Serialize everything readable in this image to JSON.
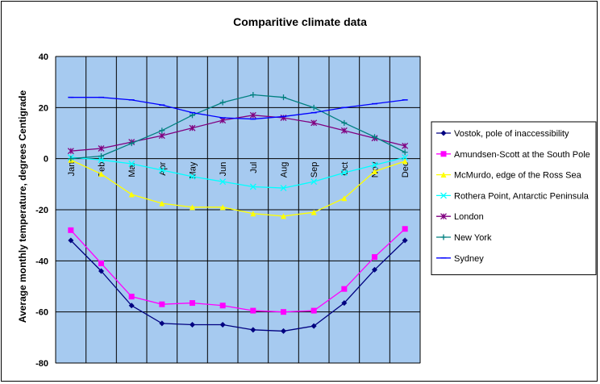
{
  "chart_data": {
    "type": "line",
    "title": "Comparitive climate data",
    "xlabel": "",
    "ylabel": "Average monthly temperature, degrees Centigrade",
    "categories": [
      "Jan",
      "Feb",
      "Mar",
      "Apr",
      "May",
      "Jun",
      "Jul",
      "Aug",
      "Sep",
      "Oct",
      "Nov",
      "Dec"
    ],
    "ylim": [
      -80,
      40
    ],
    "yticks": [
      -80,
      -60,
      -40,
      -20,
      0,
      20,
      40
    ],
    "grid": true,
    "plot_background": "#a6caf0",
    "legend_position": "right",
    "series": [
      {
        "name": "Vostok, pole of inaccessibility",
        "color": "#000080",
        "marker": "diamond",
        "values": [
          -32,
          -44,
          -57.5,
          -64.5,
          -65,
          -65,
          -67,
          -67.5,
          -65.5,
          -56.5,
          -43.5,
          -32
        ]
      },
      {
        "name": "Amundsen-Scott at the South Pole",
        "color": "#ff00ff",
        "marker": "square",
        "values": [
          -28,
          -41,
          -54,
          -57,
          -56.5,
          -57.5,
          -59.5,
          -60,
          -59.5,
          -51,
          -38.5,
          -27.5
        ]
      },
      {
        "name": "McMurdo, edge of the Ross Sea",
        "color": "#ffff00",
        "marker": "triangle",
        "values": [
          -0.5,
          -6,
          -14,
          -17.5,
          -19,
          -19,
          -21.5,
          -22.5,
          -21,
          -15.5,
          -5,
          -1
        ]
      },
      {
        "name": "Rothera Point, Antarctic Peninsula",
        "color": "#00ffff",
        "marker": "x",
        "values": [
          0.5,
          -0.5,
          -2,
          -4.5,
          -7,
          -9,
          -11,
          -11.5,
          -9,
          -5.5,
          -2.5,
          0.5
        ]
      },
      {
        "name": "London",
        "color": "#800080",
        "marker": "star",
        "values": [
          3,
          4,
          6.5,
          9,
          12,
          15,
          17,
          16,
          14,
          11,
          8,
          5
        ]
      },
      {
        "name": "New York",
        "color": "#008080",
        "marker": "plus",
        "values": [
          0,
          1,
          6,
          11,
          17,
          22,
          25,
          24,
          20,
          14,
          8.5,
          2.5
        ]
      },
      {
        "name": "Sydney",
        "color": "#0000ff",
        "marker": "dash",
        "values": [
          24,
          24,
          23,
          21,
          18,
          16,
          15.5,
          16.5,
          18,
          20,
          21.5,
          23
        ]
      }
    ]
  }
}
